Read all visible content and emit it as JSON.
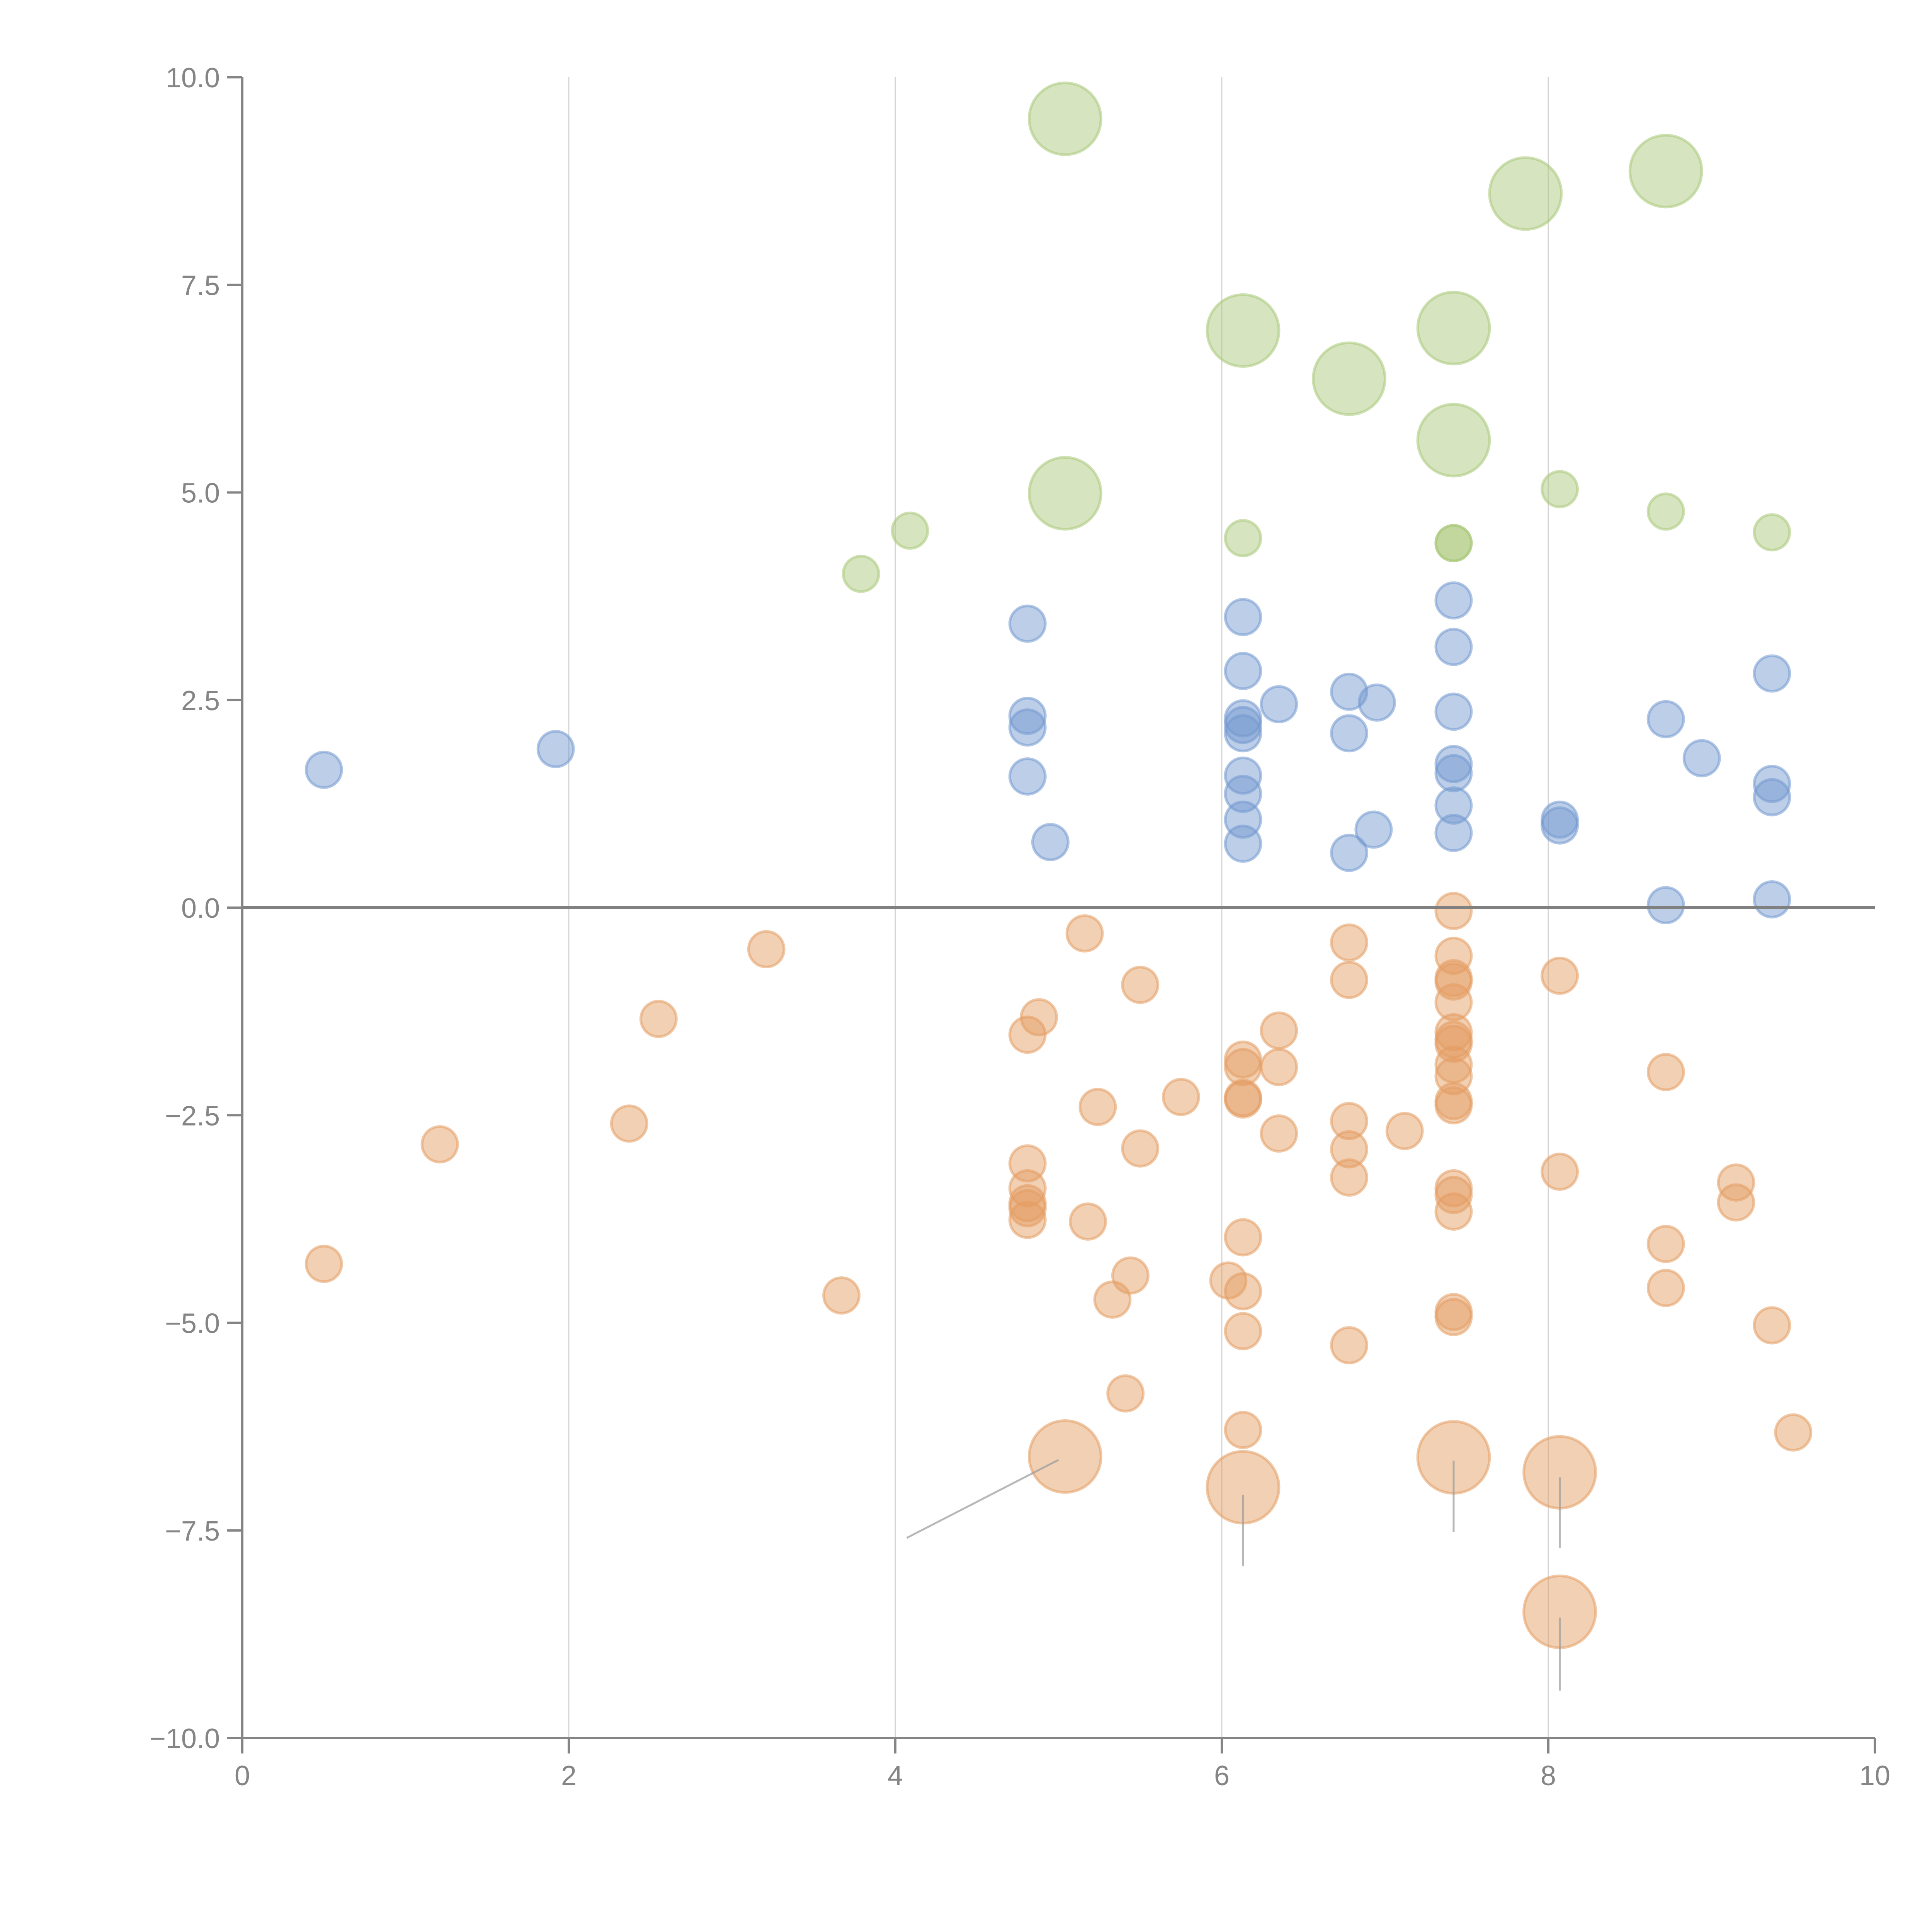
{
  "chart_data": {
    "type": "scatter",
    "title": "",
    "xlabel": "",
    "ylabel": "",
    "xlim": [
      0,
      10
    ],
    "ylim": [
      -10,
      10
    ],
    "grid": "vertical",
    "x_ticks": [
      "0",
      "2",
      "4",
      "6",
      "8",
      "10"
    ],
    "x_tick_values": [
      0,
      2,
      4,
      6,
      8,
      10
    ],
    "y_ticks": [
      "10.0",
      "7.5",
      "5.0",
      "2.5",
      "0.0",
      "−2.5",
      "−5.0",
      "−7.5",
      "−10.0"
    ],
    "y_tick_values": [
      10,
      7.5,
      5,
      2.5,
      0,
      -2.5,
      -5,
      -7.5,
      -10
    ],
    "series": [
      {
        "name": "green",
        "color": "#a9c97a",
        "points": [
          {
            "x": 5.04,
            "y": 9.5,
            "size": "large"
          },
          {
            "x": 7.86,
            "y": 8.6,
            "size": "large"
          },
          {
            "x": 8.72,
            "y": 8.87,
            "size": "large"
          },
          {
            "x": 6.13,
            "y": 6.95,
            "size": "large"
          },
          {
            "x": 7.42,
            "y": 6.98,
            "size": "large"
          },
          {
            "x": 6.78,
            "y": 6.37,
            "size": "large"
          },
          {
            "x": 7.42,
            "y": 5.63,
            "size": "large"
          },
          {
            "x": 5.04,
            "y": 4.99,
            "size": "large"
          },
          {
            "x": 8.07,
            "y": 5.04,
            "size": "small"
          },
          {
            "x": 8.72,
            "y": 4.77,
            "size": "small"
          },
          {
            "x": 9.37,
            "y": 4.52,
            "size": "small"
          },
          {
            "x": 6.13,
            "y": 4.45,
            "size": "small"
          },
          {
            "x": 7.42,
            "y": 4.39,
            "size": "small"
          },
          {
            "x": 7.42,
            "y": 4.39,
            "size": "small"
          },
          {
            "x": 4.09,
            "y": 4.54,
            "size": "small"
          },
          {
            "x": 3.79,
            "y": 4.02,
            "size": "small"
          }
        ]
      },
      {
        "name": "blue",
        "color": "#7399cf",
        "points": [
          {
            "x": 0.5,
            "y": 1.66,
            "size": "small"
          },
          {
            "x": 1.92,
            "y": 1.91,
            "size": "small"
          },
          {
            "x": 4.81,
            "y": 3.42,
            "size": "small"
          },
          {
            "x": 4.81,
            "y": 2.31,
            "size": "small"
          },
          {
            "x": 4.81,
            "y": 2.17,
            "size": "small"
          },
          {
            "x": 4.81,
            "y": 1.58,
            "size": "small"
          },
          {
            "x": 4.95,
            "y": 0.79,
            "size": "small"
          },
          {
            "x": 6.13,
            "y": 3.5,
            "size": "small"
          },
          {
            "x": 6.13,
            "y": 2.85,
            "size": "small"
          },
          {
            "x": 6.13,
            "y": 2.28,
            "size": "small"
          },
          {
            "x": 6.13,
            "y": 2.2,
            "size": "small"
          },
          {
            "x": 6.13,
            "y": 2.1,
            "size": "small"
          },
          {
            "x": 6.35,
            "y": 2.45,
            "size": "small"
          },
          {
            "x": 6.13,
            "y": 1.59,
            "size": "small"
          },
          {
            "x": 6.13,
            "y": 1.37,
            "size": "small"
          },
          {
            "x": 6.13,
            "y": 1.06,
            "size": "small"
          },
          {
            "x": 6.13,
            "y": 0.77,
            "size": "small"
          },
          {
            "x": 6.78,
            "y": 2.6,
            "size": "small"
          },
          {
            "x": 6.95,
            "y": 2.47,
            "size": "small"
          },
          {
            "x": 6.78,
            "y": 2.1,
            "size": "small"
          },
          {
            "x": 6.93,
            "y": 0.94,
            "size": "small"
          },
          {
            "x": 6.78,
            "y": 0.66,
            "size": "small"
          },
          {
            "x": 7.42,
            "y": 3.7,
            "size": "small"
          },
          {
            "x": 7.42,
            "y": 3.14,
            "size": "small"
          },
          {
            "x": 7.42,
            "y": 2.36,
            "size": "small"
          },
          {
            "x": 7.42,
            "y": 1.73,
            "size": "small"
          },
          {
            "x": 7.42,
            "y": 1.62,
            "size": "small"
          },
          {
            "x": 7.42,
            "y": 1.23,
            "size": "small"
          },
          {
            "x": 7.42,
            "y": 0.9,
            "size": "small"
          },
          {
            "x": 8.07,
            "y": 1.06,
            "size": "small"
          },
          {
            "x": 8.07,
            "y": 0.99,
            "size": "small"
          },
          {
            "x": 8.72,
            "y": 2.27,
            "size": "small"
          },
          {
            "x": 8.94,
            "y": 1.8,
            "size": "small"
          },
          {
            "x": 8.72,
            "y": 0.03,
            "size": "small"
          },
          {
            "x": 9.37,
            "y": 2.82,
            "size": "small"
          },
          {
            "x": 9.37,
            "y": 1.49,
            "size": "small"
          },
          {
            "x": 9.37,
            "y": 1.33,
            "size": "small"
          },
          {
            "x": 9.37,
            "y": 0.1,
            "size": "small"
          }
        ]
      },
      {
        "name": "orange",
        "color": "#e49c62",
        "points": [
          {
            "x": 0.5,
            "y": -4.29,
            "size": "small"
          },
          {
            "x": 1.21,
            "y": -2.85,
            "size": "small"
          },
          {
            "x": 2.55,
            "y": -1.34,
            "size": "small"
          },
          {
            "x": 2.37,
            "y": -2.6,
            "size": "small"
          },
          {
            "x": 3.21,
            "y": -0.5,
            "size": "small"
          },
          {
            "x": 3.67,
            "y": -4.67,
            "size": "small"
          },
          {
            "x": 5.16,
            "y": -0.31,
            "size": "small"
          },
          {
            "x": 5.5,
            "y": -0.93,
            "size": "small"
          },
          {
            "x": 4.88,
            "y": -1.32,
            "size": "small"
          },
          {
            "x": 4.81,
            "y": -1.53,
            "size": "small"
          },
          {
            "x": 5.24,
            "y": -2.4,
            "size": "small"
          },
          {
            "x": 5.75,
            "y": -2.28,
            "size": "small"
          },
          {
            "x": 5.5,
            "y": -2.9,
            "size": "small"
          },
          {
            "x": 4.81,
            "y": -3.08,
            "size": "small"
          },
          {
            "x": 4.81,
            "y": -3.38,
            "size": "small"
          },
          {
            "x": 4.81,
            "y": -3.56,
            "size": "small"
          },
          {
            "x": 4.81,
            "y": -3.62,
            "size": "small"
          },
          {
            "x": 4.81,
            "y": -3.76,
            "size": "small"
          },
          {
            "x": 5.18,
            "y": -3.78,
            "size": "small"
          },
          {
            "x": 5.44,
            "y": -4.43,
            "size": "small"
          },
          {
            "x": 5.33,
            "y": -4.72,
            "size": "small"
          },
          {
            "x": 5.41,
            "y": -5.85,
            "size": "small"
          },
          {
            "x": 6.13,
            "y": -1.83,
            "size": "small"
          },
          {
            "x": 6.13,
            "y": -1.92,
            "size": "small"
          },
          {
            "x": 6.13,
            "y": -2.29,
            "size": "small"
          },
          {
            "x": 6.13,
            "y": -2.31,
            "size": "small"
          },
          {
            "x": 6.35,
            "y": -1.48,
            "size": "small"
          },
          {
            "x": 6.35,
            "y": -1.92,
            "size": "small"
          },
          {
            "x": 6.35,
            "y": -2.72,
            "size": "small"
          },
          {
            "x": 6.13,
            "y": -3.97,
            "size": "small"
          },
          {
            "x": 6.04,
            "y": -4.49,
            "size": "small"
          },
          {
            "x": 6.13,
            "y": -4.62,
            "size": "small"
          },
          {
            "x": 6.13,
            "y": -5.1,
            "size": "small"
          },
          {
            "x": 6.13,
            "y": -6.29,
            "size": "small"
          },
          {
            "x": 6.78,
            "y": -0.42,
            "size": "small"
          },
          {
            "x": 6.78,
            "y": -0.87,
            "size": "small"
          },
          {
            "x": 6.78,
            "y": -2.57,
            "size": "small"
          },
          {
            "x": 6.78,
            "y": -2.91,
            "size": "small"
          },
          {
            "x": 6.78,
            "y": -3.25,
            "size": "small"
          },
          {
            "x": 7.12,
            "y": -2.69,
            "size": "small"
          },
          {
            "x": 6.78,
            "y": -5.27,
            "size": "small"
          },
          {
            "x": 7.42,
            "y": -0.04,
            "size": "small"
          },
          {
            "x": 7.42,
            "y": -0.58,
            "size": "small"
          },
          {
            "x": 7.42,
            "y": -0.85,
            "size": "small"
          },
          {
            "x": 7.42,
            "y": -0.89,
            "size": "small"
          },
          {
            "x": 7.42,
            "y": -1.14,
            "size": "small"
          },
          {
            "x": 7.42,
            "y": -1.5,
            "size": "small"
          },
          {
            "x": 7.42,
            "y": -1.59,
            "size": "small"
          },
          {
            "x": 7.42,
            "y": -1.64,
            "size": "small"
          },
          {
            "x": 7.42,
            "y": -1.89,
            "size": "small"
          },
          {
            "x": 7.42,
            "y": -2.03,
            "size": "small"
          },
          {
            "x": 7.42,
            "y": -2.33,
            "size": "small"
          },
          {
            "x": 7.42,
            "y": -2.38,
            "size": "small"
          },
          {
            "x": 7.42,
            "y": -3.38,
            "size": "small"
          },
          {
            "x": 7.42,
            "y": -3.46,
            "size": "small"
          },
          {
            "x": 7.42,
            "y": -3.66,
            "size": "small"
          },
          {
            "x": 7.42,
            "y": -4.87,
            "size": "small"
          },
          {
            "x": 7.42,
            "y": -4.93,
            "size": "small"
          },
          {
            "x": 8.07,
            "y": -0.82,
            "size": "small"
          },
          {
            "x": 8.07,
            "y": -3.18,
            "size": "small"
          },
          {
            "x": 8.72,
            "y": -1.98,
            "size": "small"
          },
          {
            "x": 8.72,
            "y": -4.05,
            "size": "small"
          },
          {
            "x": 8.72,
            "y": -4.58,
            "size": "small"
          },
          {
            "x": 9.15,
            "y": -3.31,
            "size": "small"
          },
          {
            "x": 9.15,
            "y": -3.55,
            "size": "small"
          },
          {
            "x": 9.37,
            "y": -5.03,
            "size": "small"
          },
          {
            "x": 9.5,
            "y": -6.32,
            "size": "small"
          },
          {
            "x": 5.04,
            "y": -6.61,
            "size": "large"
          },
          {
            "x": 6.13,
            "y": -6.98,
            "size": "large"
          },
          {
            "x": 7.42,
            "y": -6.62,
            "size": "large"
          },
          {
            "x": 8.07,
            "y": -6.8,
            "size": "large"
          },
          {
            "x": 8.07,
            "y": -8.48,
            "size": "large"
          }
        ]
      }
    ],
    "leader_lines": [
      {
        "from": [
          5.0,
          -6.65
        ],
        "to": [
          4.07,
          -7.59
        ]
      },
      {
        "from": [
          6.13,
          -7.07
        ],
        "to": [
          6.13,
          -7.93
        ]
      },
      {
        "from": [
          7.42,
          -6.66
        ],
        "to": [
          7.42,
          -7.52
        ]
      },
      {
        "from": [
          8.07,
          -6.86
        ],
        "to": [
          8.07,
          -7.71
        ]
      },
      {
        "from": [
          8.07,
          -8.55
        ],
        "to": [
          8.07,
          -9.43
        ]
      }
    ]
  }
}
